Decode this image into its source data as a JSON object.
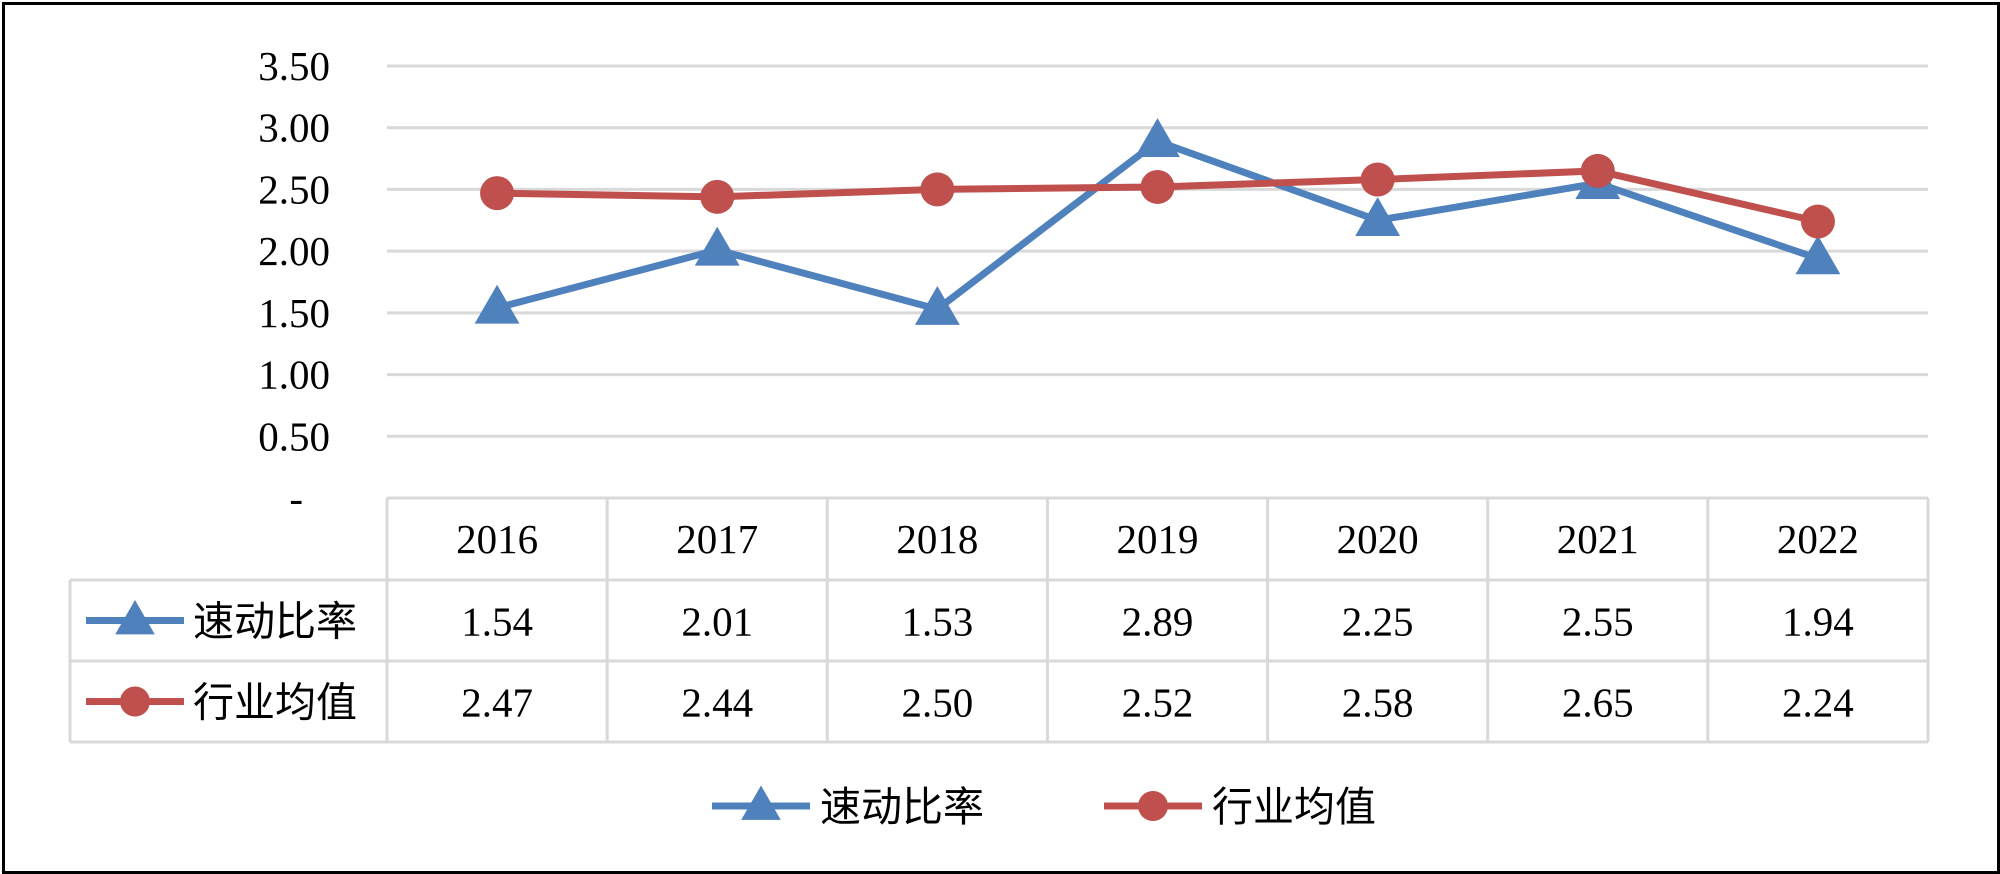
{
  "chart_data": {
    "type": "line",
    "categories": [
      "2016",
      "2017",
      "2018",
      "2019",
      "2020",
      "2021",
      "2022"
    ],
    "series": [
      {
        "name": "速动比率",
        "values": [
          1.54,
          2.01,
          1.53,
          2.89,
          2.25,
          2.55,
          1.94
        ],
        "color": "#4f81bd",
        "marker": "triangle"
      },
      {
        "name": "行业均值",
        "values": [
          2.47,
          2.44,
          2.5,
          2.52,
          2.58,
          2.65,
          2.24
        ],
        "color": "#c0504d",
        "marker": "circle"
      }
    ],
    "y_ticks": [
      "-",
      "0.50",
      "1.00",
      "1.50",
      "2.00",
      "2.50",
      "3.00",
      "3.50"
    ],
    "ylim": [
      0,
      3.5
    ],
    "grid": true,
    "legend": "bottom",
    "data_table": true
  }
}
